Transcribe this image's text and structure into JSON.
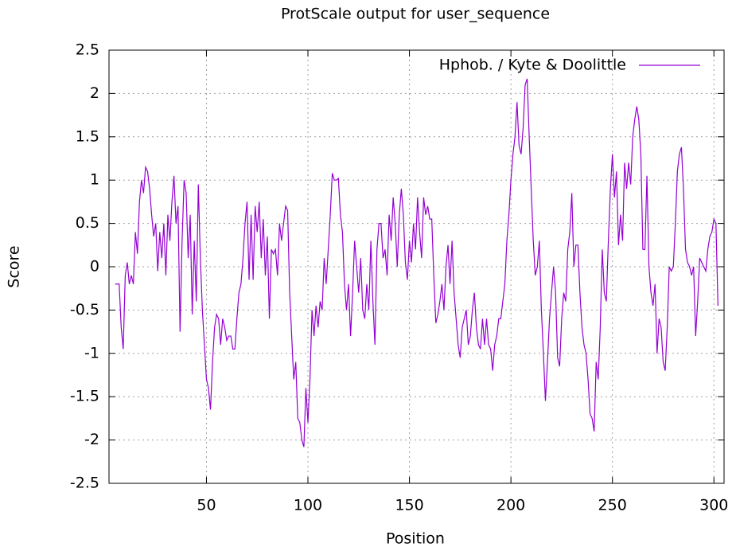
{
  "chart_data": {
    "type": "line",
    "title": "ProtScale output for user_sequence",
    "xlabel": "Position",
    "ylabel": "Score",
    "x": [
      5,
      6,
      7,
      8,
      9,
      10,
      11,
      12,
      13,
      14,
      15,
      16,
      17,
      18,
      19,
      20,
      21,
      22,
      23,
      24,
      25,
      26,
      27,
      28,
      29,
      30,
      31,
      32,
      33,
      34,
      35,
      36,
      37,
      38,
      39,
      40,
      41,
      42,
      43,
      44,
      45,
      46,
      47,
      48,
      49,
      50,
      51,
      52,
      53,
      54,
      55,
      56,
      57,
      58,
      59,
      60,
      61,
      62,
      63,
      64,
      65,
      66,
      67,
      68,
      69,
      70,
      71,
      72,
      73,
      74,
      75,
      76,
      77,
      78,
      79,
      80,
      81,
      82,
      83,
      84,
      85,
      86,
      87,
      88,
      89,
      90,
      91,
      92,
      93,
      94,
      95,
      96,
      97,
      98,
      99,
      100,
      101,
      102,
      103,
      104,
      105,
      106,
      107,
      108,
      109,
      110,
      111,
      112,
      113,
      114,
      115,
      116,
      117,
      118,
      119,
      120,
      121,
      122,
      123,
      124,
      125,
      126,
      127,
      128,
      129,
      130,
      131,
      132,
      133,
      134,
      135,
      136,
      137,
      138,
      139,
      140,
      141,
      142,
      143,
      144,
      145,
      146,
      147,
      148,
      149,
      150,
      151,
      152,
      153,
      154,
      155,
      156,
      157,
      158,
      159,
      160,
      161,
      162,
      163,
      164,
      165,
      166,
      167,
      168,
      169,
      170,
      171,
      172,
      173,
      174,
      175,
      176,
      177,
      178,
      179,
      180,
      181,
      182,
      183,
      184,
      185,
      186,
      187,
      188,
      189,
      190,
      191,
      192,
      193,
      194,
      195,
      196,
      197,
      198,
      199,
      200,
      201,
      202,
      203,
      204,
      205,
      206,
      207,
      208,
      209,
      210,
      211,
      212,
      213,
      214,
      215,
      216,
      217,
      218,
      219,
      220,
      221,
      222,
      223,
      224,
      225,
      226,
      227,
      228,
      229,
      230,
      231,
      232,
      233,
      234,
      235,
      236,
      237,
      238,
      239,
      240,
      241,
      242,
      243,
      244,
      245,
      246,
      247,
      248,
      249,
      250,
      251,
      252,
      253,
      254,
      255,
      256,
      257,
      258,
      259,
      260,
      261,
      262,
      263,
      264,
      265,
      266,
      267,
      268,
      269,
      270,
      271,
      272,
      273,
      274,
      275,
      276,
      277,
      278,
      279,
      280,
      281,
      282,
      283,
      284,
      285,
      286,
      287,
      288,
      289,
      290,
      291,
      292,
      293,
      294,
      295,
      296,
      297,
      298,
      299,
      300,
      301,
      302
    ],
    "series": [
      {
        "name": "Hphob. / Kyte & Doolittle",
        "color": "#9400d3",
        "values": [
          -0.2,
          -0.2,
          -0.2,
          -0.7,
          -0.95,
          -0.1,
          0.05,
          -0.2,
          -0.1,
          -0.2,
          0.4,
          0.15,
          0.75,
          1.0,
          0.85,
          1.15,
          1.1,
          0.9,
          0.6,
          0.35,
          0.5,
          -0.05,
          0.4,
          0.1,
          0.5,
          -0.1,
          0.6,
          0.3,
          0.75,
          1.05,
          0.5,
          0.7,
          -0.75,
          0.3,
          1.0,
          0.85,
          0.1,
          0.6,
          -0.55,
          0.3,
          -0.4,
          0.95,
          0.1,
          -0.5,
          -0.9,
          -1.3,
          -1.4,
          -1.65,
          -1.1,
          -0.7,
          -0.55,
          -0.6,
          -0.9,
          -0.6,
          -0.7,
          -0.85,
          -0.8,
          -0.8,
          -0.95,
          -0.95,
          -0.6,
          -0.3,
          -0.2,
          0.1,
          0.5,
          0.75,
          -0.15,
          0.6,
          -0.15,
          0.7,
          0.4,
          0.75,
          0.1,
          0.55,
          -0.1,
          0.35,
          -0.6,
          0.2,
          0.15,
          0.2,
          -0.1,
          0.5,
          0.3,
          0.5,
          0.7,
          0.65,
          -0.3,
          -0.8,
          -1.3,
          -1.1,
          -1.75,
          -1.8,
          -2.0,
          -2.08,
          -1.4,
          -1.8,
          -1.3,
          -0.5,
          -0.8,
          -0.45,
          -0.7,
          -0.4,
          -0.5,
          0.1,
          -0.2,
          0.2,
          0.6,
          1.08,
          1.0,
          1.0,
          1.02,
          0.6,
          0.4,
          -0.2,
          -0.5,
          -0.2,
          -0.8,
          -0.3,
          0.3,
          0.0,
          -0.3,
          0.1,
          -0.5,
          -0.6,
          -0.2,
          -0.5,
          0.3,
          -0.4,
          -0.9,
          0.2,
          0.5,
          0.5,
          0.1,
          0.2,
          -0.1,
          0.6,
          0.3,
          0.8,
          0.5,
          0.0,
          0.6,
          0.9,
          0.6,
          0.05,
          -0.15,
          0.3,
          0.05,
          0.5,
          0.2,
          0.8,
          0.4,
          0.1,
          0.8,
          0.6,
          0.7,
          0.55,
          0.55,
          -0.1,
          -0.65,
          -0.55,
          -0.4,
          -0.2,
          -0.5,
          0.0,
          0.25,
          -0.2,
          0.3,
          -0.3,
          -0.6,
          -0.9,
          -1.05,
          -0.7,
          -0.6,
          -0.5,
          -0.9,
          -0.8,
          -0.5,
          -0.3,
          -0.7,
          -0.9,
          -0.95,
          -0.6,
          -0.9,
          -0.6,
          -0.9,
          -0.95,
          -1.2,
          -0.9,
          -0.8,
          -0.6,
          -0.6,
          -0.4,
          -0.2,
          0.3,
          0.6,
          1.0,
          1.3,
          1.5,
          1.9,
          1.4,
          1.3,
          1.6,
          2.1,
          2.17,
          1.5,
          0.9,
          0.3,
          -0.1,
          0.0,
          0.3,
          -0.5,
          -1.0,
          -1.55,
          -1.1,
          -0.6,
          -0.3,
          0.0,
          -0.3,
          -1.05,
          -1.15,
          -0.6,
          -0.3,
          -0.4,
          0.2,
          0.4,
          0.85,
          0.0,
          0.25,
          0.25,
          -0.3,
          -0.7,
          -0.9,
          -1.0,
          -1.3,
          -1.7,
          -1.75,
          -1.9,
          -1.1,
          -1.3,
          -0.7,
          0.2,
          -0.3,
          -0.4,
          0.3,
          0.9,
          1.3,
          0.8,
          1.1,
          0.25,
          0.6,
          0.3,
          1.2,
          0.9,
          1.2,
          0.95,
          1.5,
          1.7,
          1.85,
          1.7,
          1.3,
          0.2,
          0.2,
          1.05,
          0.0,
          -0.3,
          -0.45,
          -0.2,
          -1.0,
          -0.6,
          -0.7,
          -1.1,
          -1.2,
          -0.7,
          0.0,
          -0.05,
          0.0,
          0.5,
          1.1,
          1.3,
          1.38,
          0.9,
          0.2,
          0.05,
          0.0,
          -0.1,
          0.0,
          -0.8,
          -0.4,
          0.1,
          0.05,
          0.0,
          -0.05,
          0.2,
          0.35,
          0.4,
          0.55,
          0.5,
          -0.45
        ]
      }
    ],
    "xlim": [
      2,
      305
    ],
    "xticks": [
      50,
      100,
      150,
      200,
      250,
      300
    ],
    "ylim": [
      -2.5,
      2.5
    ],
    "yticks": [
      -2.5,
      -2,
      -1.5,
      -1,
      -0.5,
      0,
      0.5,
      1,
      1.5,
      2,
      2.5
    ],
    "grid": true,
    "legend": "top right"
  }
}
